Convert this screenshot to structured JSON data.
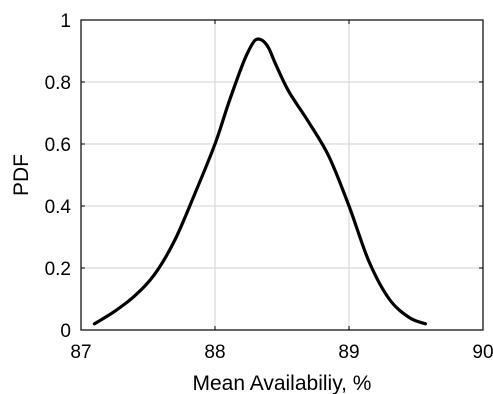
{
  "chart_data": {
    "type": "line",
    "xlabel": "Mean Availabiliy, %",
    "ylabel": "PDF",
    "xlim": [
      87,
      90
    ],
    "ylim": [
      0,
      1
    ],
    "xticks": [
      87,
      88,
      89,
      90
    ],
    "yticks": [
      0,
      0.2,
      0.4,
      0.6,
      0.8,
      1
    ],
    "xtick_labels": [
      "87",
      "88",
      "89",
      "90"
    ],
    "ytick_labels": [
      "0",
      "0.2",
      "0.4",
      "0.6",
      "0.8",
      "1"
    ],
    "grid": true,
    "line_color": "#000000",
    "grid_color": "#d9d9d9",
    "series": [
      {
        "x": [
          87.1,
          87.25,
          87.4,
          87.55,
          87.7,
          87.85,
          88.0,
          88.1,
          88.2,
          88.25,
          88.3,
          88.35,
          88.4,
          88.45,
          88.55,
          88.7,
          88.85,
          89.0,
          89.15,
          89.3,
          89.45,
          89.57
        ],
        "y": [
          0.02,
          0.06,
          0.11,
          0.18,
          0.29,
          0.44,
          0.6,
          0.73,
          0.85,
          0.9,
          0.935,
          0.935,
          0.91,
          0.86,
          0.77,
          0.67,
          0.56,
          0.4,
          0.22,
          0.1,
          0.04,
          0.02
        ]
      }
    ]
  }
}
